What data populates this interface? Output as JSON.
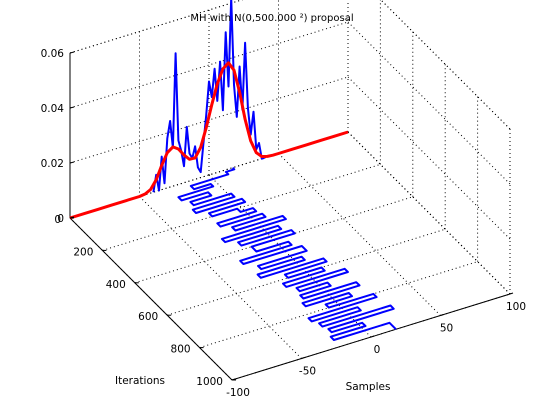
{
  "chart_data": {
    "type": "line",
    "title": "MH with N(0,500.000 ²) proposal",
    "xlabel": "Samples",
    "ylabel": "Iterations",
    "zlabel": "",
    "xlim": [
      -100,
      100
    ],
    "ylim": [
      0,
      1000
    ],
    "zlim": [
      0,
      0.06
    ],
    "x_ticks": [
      "-100",
      "-50",
      "0",
      "50",
      "100"
    ],
    "y_ticks": [
      "0",
      "200",
      "400",
      "600",
      "800",
      "1000"
    ],
    "z_ticks": [
      "0",
      "0.02",
      "0.04",
      "0.06"
    ],
    "grid": true,
    "view": "3-D",
    "series": [
      {
        "kind": "histogram",
        "color": "#0000ff",
        "x": [
          -40,
          -38,
          -36,
          -34,
          -32,
          -30,
          -28,
          -26,
          -24,
          -22,
          -20,
          -18,
          -16,
          -14,
          -12,
          -10,
          -8,
          -6,
          -4,
          -2,
          0,
          2,
          4,
          6,
          8,
          10,
          12,
          14,
          16,
          18,
          20,
          22,
          24,
          26,
          28,
          30,
          32,
          34,
          36,
          38,
          40
        ],
        "z": [
          0,
          0.006,
          0,
          0.012,
          0.002,
          0.018,
          0.024,
          0.014,
          0.048,
          0.016,
          0.012,
          0.006,
          0.02,
          0.01,
          0.008,
          0.012,
          0.004,
          0.002,
          0.012,
          0.022,
          0.034,
          0.028,
          0.038,
          0.026,
          0.04,
          0.022,
          0.05,
          0.03,
          0.062,
          0.03,
          0.018,
          0.036,
          0.02,
          0.044,
          0.02,
          0.01,
          0.018,
          0.004,
          0.006,
          0,
          0
        ]
      },
      {
        "kind": "density",
        "color": "#ff0000",
        "x": [
          -100,
          -90,
          -80,
          -70,
          -60,
          -50,
          -46,
          -42,
          -38,
          -34,
          -30,
          -26,
          -22,
          -18,
          -14,
          -10,
          -6,
          -2,
          2,
          6,
          10,
          14,
          18,
          22,
          26,
          30,
          34,
          38,
          42,
          46,
          50,
          60,
          70,
          80,
          90,
          100
        ],
        "z": [
          0,
          0,
          0,
          0,
          0,
          0,
          0.0003,
          0.0013,
          0.0042,
          0.0088,
          0.0128,
          0.0143,
          0.0129,
          0.0101,
          0.0079,
          0.0078,
          0.011,
          0.0175,
          0.0253,
          0.0322,
          0.037,
          0.0386,
          0.0353,
          0.0267,
          0.0162,
          0.0077,
          0.0028,
          0.0008,
          0.0002,
          0,
          0,
          0,
          0,
          0,
          0,
          0
        ]
      },
      {
        "kind": "trace",
        "color": "#0000ff",
        "x": [
          17,
          17,
          11,
          11,
          -16,
          -16,
          -4,
          -4,
          -29,
          -29,
          -10,
          -10,
          -25,
          -25,
          2,
          2,
          -28,
          -28,
          5,
          5,
          -21,
          -21,
          -3,
          -3,
          6,
          6,
          -22,
          -22,
          8,
          8,
          -16,
          -16,
          18,
          18,
          -28,
          -28,
          10,
          10,
          -21,
          -21,
          15,
          15,
          -16,
          -16,
          7,
          7,
          -30,
          -30,
          12,
          12,
          -23,
          -23,
          6,
          6,
          -28,
          -28,
          17,
          17,
          -13,
          -13,
          11,
          11,
          -19,
          -19,
          23,
          23,
          -14,
          -14,
          6,
          6,
          -16,
          -16,
          22,
          22,
          -19,
          -19,
          12,
          12,
          -7,
          -7,
          25,
          25,
          -24,
          -24,
          9,
          9,
          -21,
          -21,
          28,
          28,
          -19,
          -19,
          3,
          3,
          -22,
          -22,
          18,
          18
        ],
        "y": [
          0,
          10,
          10,
          25,
          25,
          45,
          45,
          60,
          60,
          80,
          80,
          100,
          100,
          120,
          120,
          140,
          140,
          160,
          160,
          180,
          180,
          200,
          200,
          220,
          220,
          240,
          240,
          260,
          260,
          280,
          280,
          300,
          300,
          320,
          320,
          340,
          340,
          360,
          360,
          380,
          380,
          400,
          400,
          430,
          430,
          450,
          450,
          470,
          470,
          500,
          500,
          520,
          520,
          540,
          540,
          560,
          560,
          580,
          580,
          600,
          600,
          620,
          620,
          640,
          640,
          660,
          660,
          680,
          680,
          700,
          700,
          720,
          720,
          740,
          740,
          760,
          760,
          780,
          780,
          800,
          800,
          820,
          820,
          840,
          840,
          860,
          860,
          880,
          880,
          900,
          900,
          920,
          920,
          940,
          940,
          960,
          960,
          1000
        ]
      }
    ]
  }
}
